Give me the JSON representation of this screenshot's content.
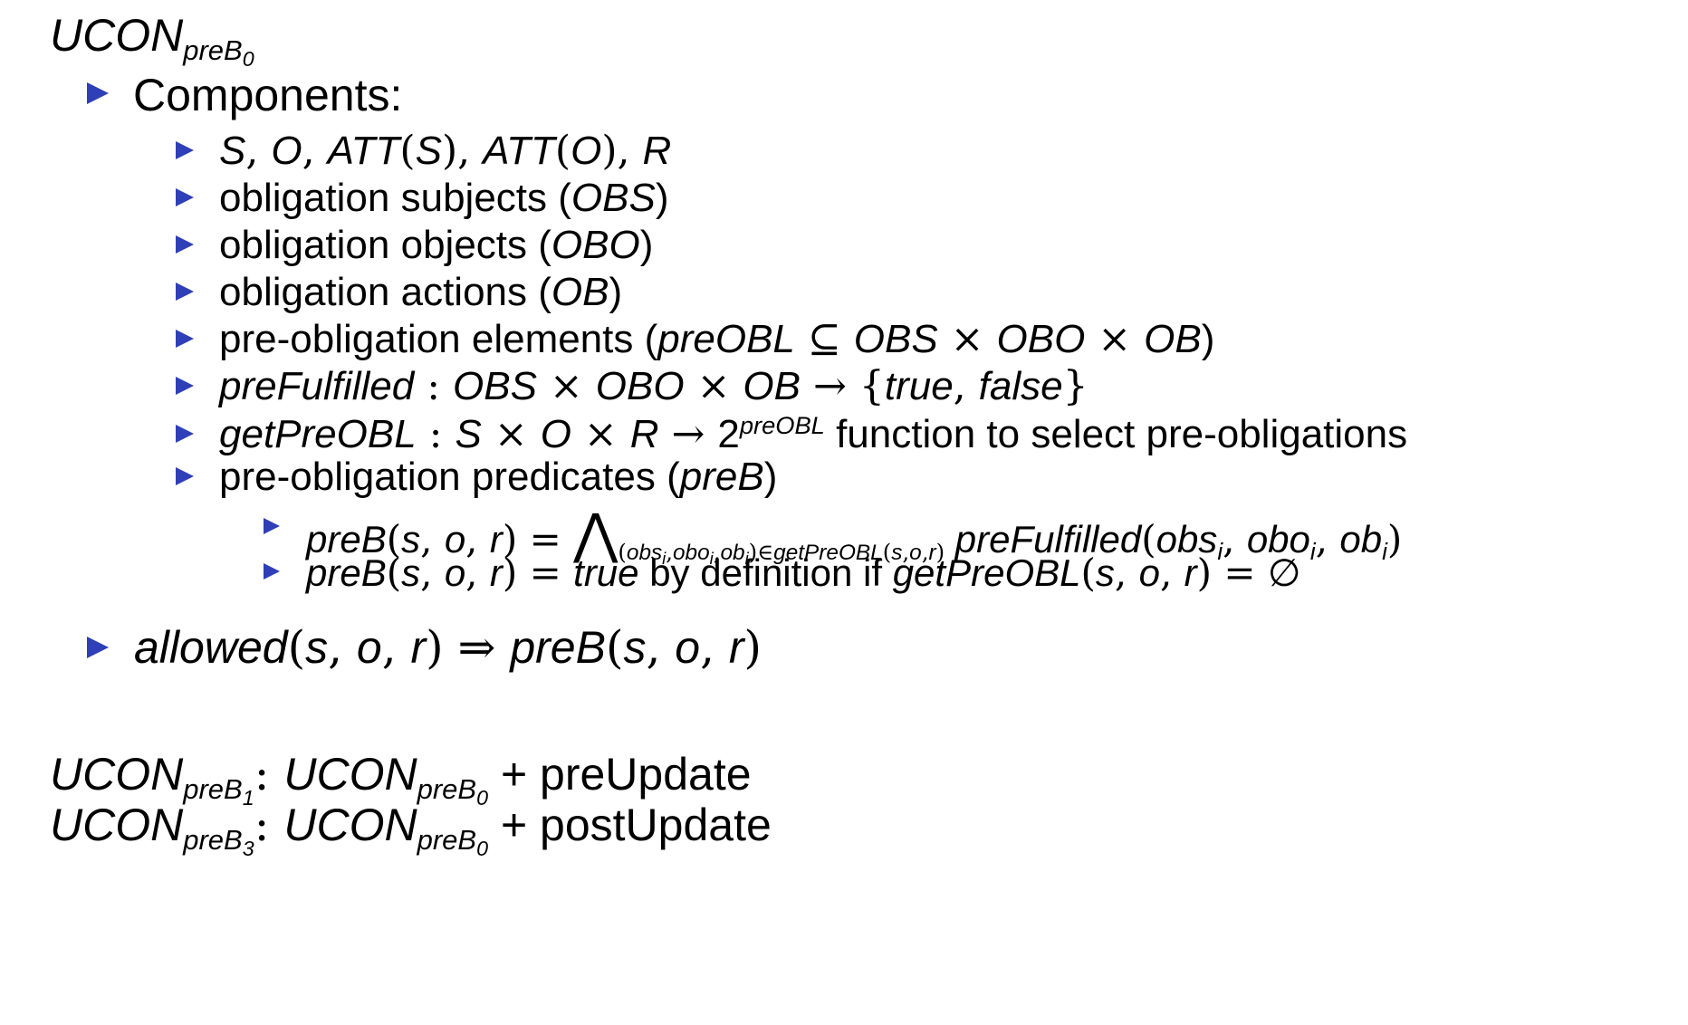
{
  "title": {
    "main": "UCON",
    "sub": "preB",
    "subsub": "0"
  },
  "components_label": "Components:",
  "items": {
    "i1": {
      "S": "S",
      "O": "O",
      "ATT": "ATT",
      "R": "R"
    },
    "i2": {
      "text": "obligation subjects (",
      "sym": "OBS",
      "close": ")"
    },
    "i3": {
      "text": "obligation objects (",
      "sym": "OBO",
      "close": ")"
    },
    "i4": {
      "text": "obligation actions (",
      "sym": "OB",
      "close": ")"
    },
    "i5": {
      "text": "pre-obligation elements (",
      "sym1": "preOBL",
      "sym2": "OBS",
      "sym3": "OBO",
      "sym4": "OB",
      "close": ")"
    },
    "i6": {
      "fn": "preFulfilled",
      "a": "OBS",
      "b": "OBO",
      "c": "OB",
      "t": "true",
      "f": "false"
    },
    "i7": {
      "fn": "getPreOBL",
      "a": "S",
      "b": "O",
      "c": "R",
      "base": "2",
      "exp": "preOBL",
      "text": "function to select pre-obligations"
    },
    "i8": {
      "text": "pre-obligation predicates (",
      "sym": "preB",
      "close": ")"
    }
  },
  "sub_items": {
    "s1": {
      "fn": "preB",
      "sub_obs": "obs",
      "sub_obo": "obo",
      "sub_ob": "ob",
      "sub_i": "i",
      "sub_fn": "getPreOBL",
      "rhs": "preFulfilled",
      "obs": "obs",
      "obo": "obo",
      "ob": "ob",
      "i": "i"
    },
    "s2": {
      "fn": "preB",
      "t": "true",
      "text": "by definition if",
      "fn2": "getPreOBL"
    }
  },
  "allowed": {
    "fn": "allowed",
    "rhs": "preB"
  },
  "footer": {
    "l1": {
      "main": "UCON",
      "sub": "preB",
      "subsub": "1",
      "main2": "UCON",
      "sub2": "preB",
      "subsub2": "0",
      "plus": "+ preUpdate"
    },
    "l2": {
      "main": "UCON",
      "sub": "preB",
      "subsub": "3",
      "main2": "UCON",
      "sub2": "preB",
      "subsub2": "0",
      "plus": "+ postUpdate"
    }
  },
  "colors": {
    "bullet": "#2f3fb8"
  }
}
